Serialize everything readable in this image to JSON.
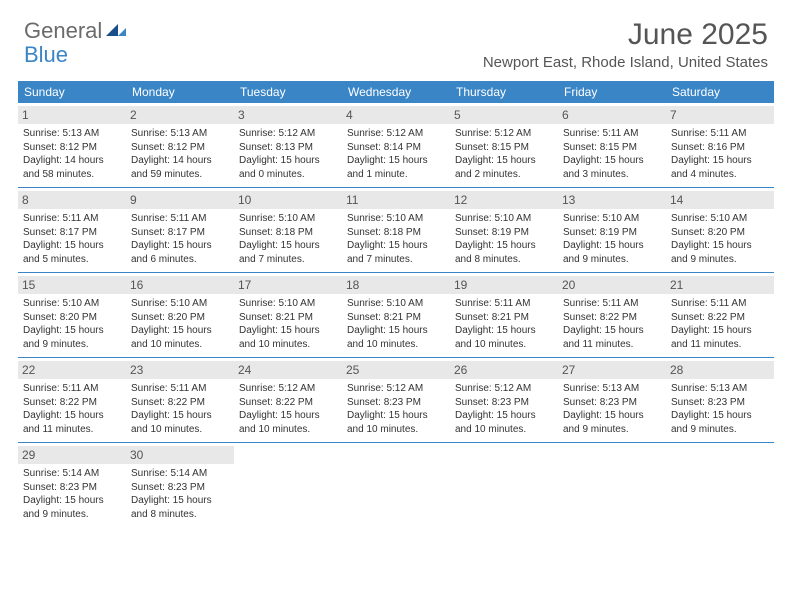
{
  "logo": {
    "general": "General",
    "blue": "Blue"
  },
  "title": "June 2025",
  "location": "Newport East, Rhode Island, United States",
  "weekdays": [
    "Sunday",
    "Monday",
    "Tuesday",
    "Wednesday",
    "Thursday",
    "Friday",
    "Saturday"
  ],
  "colors": {
    "header_bar": "#3a85c6",
    "day_num_bg": "#e8e8e8",
    "rule": "#3a85c6",
    "text": "#333333",
    "muted": "#555555"
  },
  "weeks": [
    [
      {
        "num": "1",
        "sunrise": "5:13 AM",
        "sunset": "8:12 PM",
        "daylight": "14 hours and 58 minutes."
      },
      {
        "num": "2",
        "sunrise": "5:13 AM",
        "sunset": "8:12 PM",
        "daylight": "14 hours and 59 minutes."
      },
      {
        "num": "3",
        "sunrise": "5:12 AM",
        "sunset": "8:13 PM",
        "daylight": "15 hours and 0 minutes."
      },
      {
        "num": "4",
        "sunrise": "5:12 AM",
        "sunset": "8:14 PM",
        "daylight": "15 hours and 1 minute."
      },
      {
        "num": "5",
        "sunrise": "5:12 AM",
        "sunset": "8:15 PM",
        "daylight": "15 hours and 2 minutes."
      },
      {
        "num": "6",
        "sunrise": "5:11 AM",
        "sunset": "8:15 PM",
        "daylight": "15 hours and 3 minutes."
      },
      {
        "num": "7",
        "sunrise": "5:11 AM",
        "sunset": "8:16 PM",
        "daylight": "15 hours and 4 minutes."
      }
    ],
    [
      {
        "num": "8",
        "sunrise": "5:11 AM",
        "sunset": "8:17 PM",
        "daylight": "15 hours and 5 minutes."
      },
      {
        "num": "9",
        "sunrise": "5:11 AM",
        "sunset": "8:17 PM",
        "daylight": "15 hours and 6 minutes."
      },
      {
        "num": "10",
        "sunrise": "5:10 AM",
        "sunset": "8:18 PM",
        "daylight": "15 hours and 7 minutes."
      },
      {
        "num": "11",
        "sunrise": "5:10 AM",
        "sunset": "8:18 PM",
        "daylight": "15 hours and 7 minutes."
      },
      {
        "num": "12",
        "sunrise": "5:10 AM",
        "sunset": "8:19 PM",
        "daylight": "15 hours and 8 minutes."
      },
      {
        "num": "13",
        "sunrise": "5:10 AM",
        "sunset": "8:19 PM",
        "daylight": "15 hours and 9 minutes."
      },
      {
        "num": "14",
        "sunrise": "5:10 AM",
        "sunset": "8:20 PM",
        "daylight": "15 hours and 9 minutes."
      }
    ],
    [
      {
        "num": "15",
        "sunrise": "5:10 AM",
        "sunset": "8:20 PM",
        "daylight": "15 hours and 9 minutes."
      },
      {
        "num": "16",
        "sunrise": "5:10 AM",
        "sunset": "8:20 PM",
        "daylight": "15 hours and 10 minutes."
      },
      {
        "num": "17",
        "sunrise": "5:10 AM",
        "sunset": "8:21 PM",
        "daylight": "15 hours and 10 minutes."
      },
      {
        "num": "18",
        "sunrise": "5:10 AM",
        "sunset": "8:21 PM",
        "daylight": "15 hours and 10 minutes."
      },
      {
        "num": "19",
        "sunrise": "5:11 AM",
        "sunset": "8:21 PM",
        "daylight": "15 hours and 10 minutes."
      },
      {
        "num": "20",
        "sunrise": "5:11 AM",
        "sunset": "8:22 PM",
        "daylight": "15 hours and 11 minutes."
      },
      {
        "num": "21",
        "sunrise": "5:11 AM",
        "sunset": "8:22 PM",
        "daylight": "15 hours and 11 minutes."
      }
    ],
    [
      {
        "num": "22",
        "sunrise": "5:11 AM",
        "sunset": "8:22 PM",
        "daylight": "15 hours and 11 minutes."
      },
      {
        "num": "23",
        "sunrise": "5:11 AM",
        "sunset": "8:22 PM",
        "daylight": "15 hours and 10 minutes."
      },
      {
        "num": "24",
        "sunrise": "5:12 AM",
        "sunset": "8:22 PM",
        "daylight": "15 hours and 10 minutes."
      },
      {
        "num": "25",
        "sunrise": "5:12 AM",
        "sunset": "8:23 PM",
        "daylight": "15 hours and 10 minutes."
      },
      {
        "num": "26",
        "sunrise": "5:12 AM",
        "sunset": "8:23 PM",
        "daylight": "15 hours and 10 minutes."
      },
      {
        "num": "27",
        "sunrise": "5:13 AM",
        "sunset": "8:23 PM",
        "daylight": "15 hours and 9 minutes."
      },
      {
        "num": "28",
        "sunrise": "5:13 AM",
        "sunset": "8:23 PM",
        "daylight": "15 hours and 9 minutes."
      }
    ],
    [
      {
        "num": "29",
        "sunrise": "5:14 AM",
        "sunset": "8:23 PM",
        "daylight": "15 hours and 9 minutes."
      },
      {
        "num": "30",
        "sunrise": "5:14 AM",
        "sunset": "8:23 PM",
        "daylight": "15 hours and 8 minutes."
      },
      null,
      null,
      null,
      null,
      null
    ]
  ],
  "labels": {
    "sunrise": "Sunrise: ",
    "sunset": "Sunset: ",
    "daylight": "Daylight: "
  }
}
